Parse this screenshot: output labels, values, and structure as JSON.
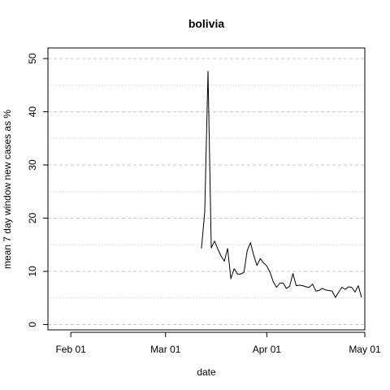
{
  "chart_data": {
    "type": "line",
    "title": "bolivia",
    "xlabel": "date",
    "ylabel": "mean  7  day window new cases as %",
    "xlim": [
      "2020-01-25",
      "2020-05-01"
    ],
    "ylim": [
      -1,
      52
    ],
    "x_ticks": [
      {
        "date": "2020-02-01",
        "label": "Feb 01"
      },
      {
        "date": "2020-03-01",
        "label": "Mar 01"
      },
      {
        "date": "2020-04-01",
        "label": "Apr 01"
      },
      {
        "date": "2020-05-01",
        "label": "May 01"
      }
    ],
    "y_ticks": [
      0,
      10,
      20,
      30,
      40,
      50
    ],
    "y_grid_major": [
      0,
      10,
      20,
      30,
      40,
      50
    ],
    "y_grid_minor": [
      5,
      15,
      25,
      35,
      45
    ],
    "grid": true,
    "series": [
      {
        "color": "#000000",
        "x": [
          "2020-03-12",
          "2020-03-13",
          "2020-03-14",
          "2020-03-15",
          "2020-03-16",
          "2020-03-17",
          "2020-03-18",
          "2020-03-19",
          "2020-03-20",
          "2020-03-21",
          "2020-03-22",
          "2020-03-23",
          "2020-03-24",
          "2020-03-25",
          "2020-03-26",
          "2020-03-27",
          "2020-03-28",
          "2020-03-29",
          "2020-03-30",
          "2020-03-31",
          "2020-04-01",
          "2020-04-02",
          "2020-04-03",
          "2020-04-04",
          "2020-04-05",
          "2020-04-06",
          "2020-04-07",
          "2020-04-08",
          "2020-04-09",
          "2020-04-10",
          "2020-04-11",
          "2020-04-12",
          "2020-04-13",
          "2020-04-14",
          "2020-04-15",
          "2020-04-16",
          "2020-04-17",
          "2020-04-18",
          "2020-04-19",
          "2020-04-20",
          "2020-04-21",
          "2020-04-22",
          "2020-04-23",
          "2020-04-24",
          "2020-04-25",
          "2020-04-26",
          "2020-04-27",
          "2020-04-28",
          "2020-04-29",
          "2020-04-30"
        ],
        "values": [
          14.3,
          21.2,
          47.6,
          14.4,
          15.7,
          14.2,
          12.9,
          11.9,
          14.3,
          8.6,
          10.5,
          9.5,
          9.5,
          9.8,
          13.9,
          15.4,
          13.0,
          11.1,
          12.4,
          11.6,
          11.0,
          9.8,
          8.0,
          7.0,
          7.8,
          7.8,
          6.8,
          7.2,
          9.6,
          7.3,
          7.4,
          7.3,
          7.1,
          7.0,
          7.6,
          6.3,
          6.4,
          6.8,
          6.5,
          6.4,
          6.3,
          5.1,
          6.1,
          7.0,
          6.6,
          7.1,
          7.0,
          6.1,
          7.3,
          5.1
        ]
      }
    ]
  }
}
